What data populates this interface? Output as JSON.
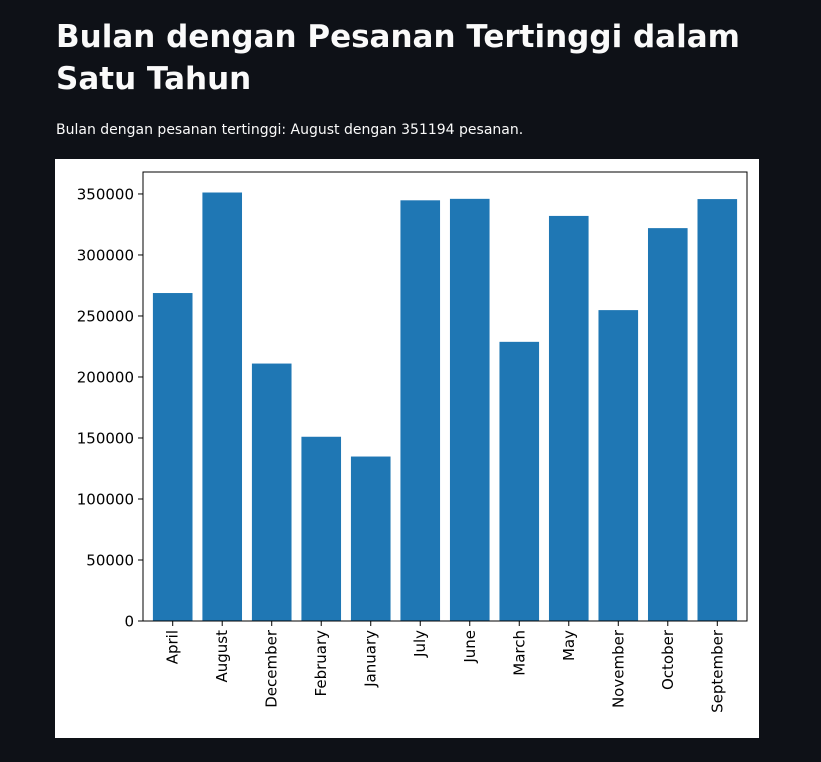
{
  "header": {
    "title": "Bulan dengan Pesanan Tertinggi dalam Satu Tahun",
    "subtitle": "Bulan dengan pesanan tertinggi: August dengan 351194 pesanan."
  },
  "chart_data": {
    "type": "bar",
    "categories": [
      "April",
      "August",
      "December",
      "February",
      "January",
      "July",
      "June",
      "March",
      "May",
      "November",
      "October",
      "September"
    ],
    "values": [
      268800,
      351194,
      211000,
      151000,
      134800,
      344800,
      346000,
      228800,
      332000,
      254800,
      322000,
      345800
    ],
    "xlabel": "",
    "ylabel": "",
    "ylim": [
      0,
      368000
    ],
    "yticks": [
      0,
      50000,
      100000,
      150000,
      200000,
      250000,
      300000,
      350000
    ],
    "grid": false,
    "bar_color": "#1f77b4"
  }
}
